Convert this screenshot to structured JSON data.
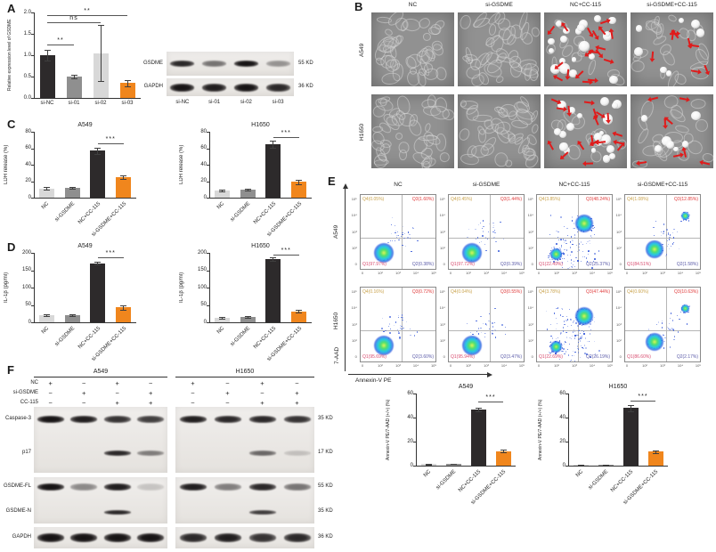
{
  "panel_labels": {
    "A": "A",
    "B": "B",
    "C": "C",
    "D": "D",
    "E": "E",
    "F": "F"
  },
  "colors": {
    "bar_dark": "#2d2a2b",
    "bar_gray": "#8f8f8f",
    "bar_lightgray": "#d8d8d8",
    "bar_orange": "#f0861d",
    "arrow_red": "#e01b1b",
    "q4": "#c9a24b",
    "q3": "#e03a3a",
    "q1": "#d84b6e",
    "q2": "#5a5aa8"
  },
  "chart_data": [
    {
      "id": "A-gsdme-expression",
      "type": "bar",
      "title": "",
      "ylabel": "Relative expression level of GSDME",
      "categories": [
        "si-NC",
        "si-01",
        "si-02",
        "si-03"
      ],
      "values": [
        1.0,
        0.5,
        1.05,
        0.35
      ],
      "errors": [
        0.13,
        0.05,
        0.65,
        0.07
      ],
      "ylim": [
        0,
        2.0
      ],
      "yticks": [
        "0.0",
        "0.5",
        "1.0",
        "1.5",
        "2.0"
      ],
      "bar_colors": [
        "dark",
        "gray",
        "lightgray",
        "orange"
      ],
      "significance": [
        {
          "from": 0,
          "to": 1,
          "label": "**",
          "y": 1.25
        },
        {
          "from": 0,
          "to": 2,
          "label": "ns",
          "y": 1.78
        },
        {
          "from": 0,
          "to": 3,
          "label": "**",
          "y": 1.93
        }
      ]
    },
    {
      "id": "C-A549",
      "type": "bar",
      "title": "A549",
      "ylabel": "LDH release (%)",
      "categories": [
        "NC",
        "si-GSDME",
        "NC+CC-115",
        "si-GSDME+CC-115"
      ],
      "values": [
        11,
        12,
        57,
        25
      ],
      "errors": [
        1.5,
        1.5,
        4,
        2
      ],
      "ylim": [
        0,
        80
      ],
      "yticks": [
        "0",
        "20",
        "40",
        "60",
        "80"
      ],
      "bar_colors": [
        "lightgray",
        "gray",
        "dark",
        "orange"
      ],
      "significance": [
        {
          "from": 2,
          "to": 3,
          "label": "***",
          "y": 66
        }
      ]
    },
    {
      "id": "C-H1650",
      "type": "bar",
      "title": "H1650",
      "ylabel": "LDH release (%)",
      "categories": [
        "NC",
        "si-GSDME",
        "NC+CC-115",
        "si-GSDME+CC-115"
      ],
      "values": [
        9,
        10,
        65,
        19
      ],
      "errors": [
        1,
        1,
        4,
        3
      ],
      "ylim": [
        0,
        80
      ],
      "yticks": [
        "0",
        "20",
        "40",
        "60",
        "80"
      ],
      "bar_colors": [
        "lightgray",
        "gray",
        "dark",
        "orange"
      ],
      "significance": [
        {
          "from": 2,
          "to": 3,
          "label": "***",
          "y": 73
        }
      ]
    },
    {
      "id": "D-A549",
      "type": "bar",
      "title": "A549",
      "ylabel": "IL-1β (pg/ml)",
      "categories": [
        "NC",
        "si-GSDME",
        "NC+CC-115",
        "si-GSDME+CC-115"
      ],
      "values": [
        20,
        20,
        170,
        43
      ],
      "errors": [
        2,
        2,
        4,
        7
      ],
      "ylim": [
        0,
        200
      ],
      "yticks": [
        "0",
        "50",
        "100",
        "150",
        "200"
      ],
      "bar_colors": [
        "lightgray",
        "gray",
        "dark",
        "orange"
      ],
      "significance": [
        {
          "from": 2,
          "to": 3,
          "label": "***",
          "y": 186
        }
      ]
    },
    {
      "id": "D-H1650",
      "type": "bar",
      "title": "H1650",
      "ylabel": "IL-1β (pg/ml)",
      "categories": [
        "NC",
        "si-GSDME",
        "NC+CC-115",
        "si-GSDME+CC-115"
      ],
      "values": [
        13,
        15,
        182,
        32
      ],
      "errors": [
        2,
        2,
        6,
        5
      ],
      "ylim": [
        0,
        200
      ],
      "yticks": [
        "0",
        "50",
        "100",
        "150",
        "200"
      ],
      "bar_colors": [
        "lightgray",
        "gray",
        "dark",
        "orange"
      ],
      "significance": [
        {
          "from": 2,
          "to": 3,
          "label": "***",
          "y": 196
        }
      ]
    },
    {
      "id": "E-A549",
      "type": "bar",
      "title": "A549",
      "ylabel": "Annexin-V PE/7-AAD (+/+) (%)",
      "categories": [
        "NC",
        "si-GSDME",
        "NC+CC-115",
        "si-GSDME+CC-115"
      ],
      "values": [
        1.2,
        1.5,
        47,
        12
      ],
      "errors": [
        0.3,
        0.3,
        1.5,
        1
      ],
      "ylim": [
        0,
        60
      ],
      "yticks": [
        "0",
        "20",
        "40",
        "60"
      ],
      "bar_colors": [
        "lightgray",
        "gray",
        "dark",
        "orange"
      ],
      "significance": [
        {
          "from": 2,
          "to": 3,
          "label": "***",
          "y": 53
        }
      ]
    },
    {
      "id": "E-H1650",
      "type": "bar",
      "title": "H1650",
      "ylabel": "Annexin-V PE/7-AAD (+/+) (%)",
      "categories": [
        "NC",
        "si-GSDME",
        "NC+CC-115",
        "si-GSDME+CC-115"
      ],
      "values": [
        0.8,
        0.8,
        48,
        11.5
      ],
      "errors": [
        0.2,
        0.2,
        2.5,
        1
      ],
      "ylim": [
        0,
        60
      ],
      "yticks": [
        "0",
        "20",
        "40",
        "60"
      ],
      "bar_colors": [
        "lightgray",
        "gray",
        "dark",
        "orange"
      ],
      "significance": [
        {
          "from": 2,
          "to": 3,
          "label": "***",
          "y": 54
        }
      ]
    },
    {
      "id": "flow-A549-NC",
      "type": "scatter",
      "row": "A549",
      "condition": "NC",
      "pattern": "healthy",
      "quadrants": {
        "Q4": "Q4(0.05%)",
        "Q3": "Q3(1.60%)",
        "Q1": "Q1(97.97%)",
        "Q2": "Q2(0.38%)"
      }
    },
    {
      "id": "flow-A549-siGSDME",
      "type": "scatter",
      "row": "A549",
      "condition": "si-GSDME",
      "pattern": "healthy",
      "quadrants": {
        "Q4": "Q4(0.45%)",
        "Q3": "Q3(1.44%)",
        "Q1": "Q1(97.72%)",
        "Q2": "Q2(0.39%)"
      }
    },
    {
      "id": "flow-A549-NC+CC-115",
      "type": "scatter",
      "row": "A549",
      "condition": "NC+CC-115",
      "pattern": "pyro",
      "quadrants": {
        "Q4": "Q4(3.85%)",
        "Q3": "Q3(48.24%)",
        "Q1": "Q1(22.49%)",
        "Q2": "Q2(25.37%)"
      }
    },
    {
      "id": "flow-A549-siGSDME+CC-115",
      "type": "scatter",
      "row": "A549",
      "condition": "si-GSDME+CC-115",
      "pattern": "rescued",
      "quadrants": {
        "Q4": "Q4(1.08%)",
        "Q3": "Q3(12.85%)",
        "Q1": "Q1(84.51%)",
        "Q2": "Q2(1.58%)"
      }
    },
    {
      "id": "flow-H1650-NC",
      "type": "scatter",
      "row": "H1650",
      "condition": "NC",
      "pattern": "healthy",
      "quadrants": {
        "Q4": "Q4(0.16%)",
        "Q3": "Q3(0.72%)",
        "Q1": "Q1(95.69%)",
        "Q2": "Q2(3.60%)"
      }
    },
    {
      "id": "flow-H1650-siGSDME",
      "type": "scatter",
      "row": "H1650",
      "condition": "si-GSDME",
      "pattern": "healthy",
      "quadrants": {
        "Q4": "Q4(0.04%)",
        "Q3": "Q3(0.55%)",
        "Q1": "Q1(95.94%)",
        "Q2": "Q2(3.47%)"
      }
    },
    {
      "id": "flow-H1650-NC+CC-115",
      "type": "scatter",
      "row": "H1650",
      "condition": "NC+CC-115",
      "pattern": "pyro",
      "quadrants": {
        "Q4": "Q4(3.78%)",
        "Q3": "Q3(47.44%)",
        "Q1": "Q1(22.69%)",
        "Q2": "Q2(26.19%)"
      }
    },
    {
      "id": "flow-H1650-siGSDME+CC-115",
      "type": "scatter",
      "row": "H1650",
      "condition": "si-GSDME+CC-115",
      "pattern": "rescued",
      "quadrants": {
        "Q4": "Q4(0.60%)",
        "Q3": "Q3(10.63%)",
        "Q1": "Q1(86.60%)",
        "Q2": "Q2(2.17%)"
      }
    }
  ],
  "panelA_blot": {
    "lane_labels": [
      "si-NC",
      "si-01",
      "si-02",
      "si-03"
    ],
    "rows": [
      {
        "label": "GSDME",
        "kd": "55 KD",
        "lanes": [
          0.9,
          0.55,
          1.0,
          0.4
        ]
      },
      {
        "label": "GAPDH",
        "kd": "36 KD",
        "lanes": [
          1,
          0.95,
          1,
          0.9
        ]
      }
    ]
  },
  "panelB": {
    "col_titles": [
      "NC",
      "si-GSDME",
      "NC+CC-115",
      "si-GSDME+CC-115"
    ],
    "row_labels": [
      "A549",
      "H1650"
    ],
    "modes": [
      [
        "normal",
        "normal",
        "pyro",
        "rescued"
      ],
      [
        "normal",
        "normal",
        "pyro",
        "rescued"
      ]
    ]
  },
  "panelE": {
    "xlabel": "Annexin-V PE",
    "ylabel": "7-AAD",
    "col_titles": [
      "NC",
      "si-GSDME",
      "NC+CC-115",
      "si-GSDME+CC-115"
    ],
    "row_labels": [
      "A549",
      "H1650"
    ],
    "x_ticks": [
      "0",
      "10²",
      "10³",
      "10⁴",
      "10⁵"
    ],
    "y_ticks": [
      "0",
      "10²",
      "10³",
      "10⁴",
      "10⁵"
    ]
  },
  "panelF": {
    "group_titles": [
      "A549",
      "H1650"
    ],
    "condition_rows": [
      {
        "label": "NC",
        "values": [
          "+",
          "−",
          "+",
          "−"
        ]
      },
      {
        "label": "si-GSDME",
        "values": [
          "−",
          "+",
          "−",
          "+"
        ]
      },
      {
        "label": "CC-115",
        "values": [
          "−",
          "−",
          "+",
          "+"
        ]
      }
    ],
    "blot_boxes": [
      {
        "rows": [
          {
            "label": "Caspase-3",
            "kd": "35 KD",
            "y": 0.19,
            "lanes": [
              [
                1,
                0.95,
                0.85,
                0.8
              ],
              [
                0.95,
                0.9,
                0.9,
                0.85
              ]
            ]
          },
          {
            "label": "p17",
            "kd": "17 KD",
            "y": 0.7,
            "lanes": [
              [
                0,
                0,
                0.9,
                0.5
              ],
              [
                0,
                0,
                0.6,
                0.18
              ]
            ]
          }
        ]
      },
      {
        "rows": [
          {
            "label": "GSDME-FL",
            "kd": "55 KD",
            "y": 0.21,
            "lanes": [
              [
                1,
                0.45,
                0.95,
                0.18
              ],
              [
                0.95,
                0.5,
                0.9,
                0.55
              ]
            ]
          },
          {
            "label": "GSDME-N",
            "kd": "35 KD",
            "y": 0.75,
            "lanes": [
              [
                0,
                0,
                0.9,
                0
              ],
              [
                0,
                0,
                0.8,
                0
              ]
            ]
          }
        ]
      },
      {
        "rows": [
          {
            "label": "GAPDH",
            "kd": "36 KD",
            "y": 0.5,
            "lanes": [
              [
                1,
                1,
                1,
                1
              ],
              [
                0.9,
                0.95,
                0.85,
                0.9
              ]
            ]
          }
        ]
      }
    ]
  }
}
